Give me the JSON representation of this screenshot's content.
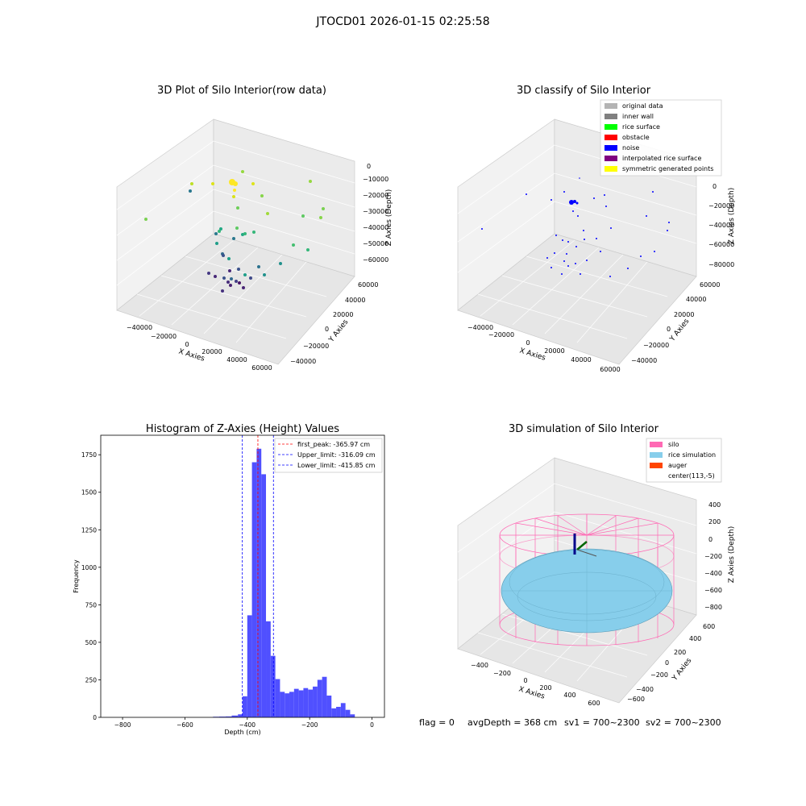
{
  "suptitle": "JTOCD01 2026-01-15 02:25:58",
  "status_line": {
    "flag": "flag = 0",
    "avg_depth": "avgDepth = 368 cm",
    "sv1": "sv1 = 700~2300",
    "sv2": "sv2 = 700~2300"
  },
  "colors": {
    "bar": "#5050ff",
    "peak_line": "#ff0000",
    "limit_line": "#0000ff",
    "silo": "#ff69b4",
    "rice": "#87ceeb",
    "auger": "#ff4500"
  },
  "chart_data": [
    {
      "type": "scatter",
      "title": "3D Plot of Silo Interior(row data)",
      "xlabel": "X Axies",
      "ylabel": "Y Axies",
      "zlabel": "Z Axies (Depth)",
      "x_ticks": [
        "−40000",
        "−20000",
        "0",
        "20000",
        "40000",
        "60000"
      ],
      "y_ticks": [
        "−40000",
        "−20000",
        "0",
        "20000",
        "40000",
        "60000"
      ],
      "z_ticks": [
        "0",
        "−10000",
        "−20000",
        "−30000",
        "−40000",
        "−50000",
        "−60000"
      ],
      "grid": true,
      "colormap": "viridis"
    },
    {
      "type": "scatter",
      "title": "3D classify of Silo Interior",
      "xlabel": "X Axies",
      "ylabel": "Y Axies",
      "zlabel": "Z Axies (Depth)",
      "x_ticks": [
        "−40000",
        "−20000",
        "0",
        "20000",
        "40000",
        "60000"
      ],
      "y_ticks": [
        "−40000",
        "−20000",
        "0",
        "20000",
        "40000",
        "60000"
      ],
      "z_ticks": [
        "0",
        "−20000",
        "−40000",
        "−60000",
        "−80000"
      ],
      "grid": true,
      "legend_position": "top-right",
      "legend": [
        {
          "label": "original data",
          "color": "#b4b4b4"
        },
        {
          "label": "inner wall",
          "color": "#808080"
        },
        {
          "label": "rice surface",
          "color": "#00ff00"
        },
        {
          "label": "obstacle",
          "color": "#ff0000"
        },
        {
          "label": "noise",
          "color": "#0000ff"
        },
        {
          "label": "interpolated rice surface",
          "color": "#800080"
        },
        {
          "label": "symmetric generated points",
          "color": "#ffff00"
        }
      ]
    },
    {
      "type": "bar",
      "title": "Histogram of Z-Axies (Height) Values",
      "xlabel": "Depth (cm)",
      "ylabel": "Frequency",
      "xlim": [
        -870,
        40
      ],
      "ylim": [
        0,
        1880
      ],
      "x_ticks": [
        -800,
        -600,
        -400,
        -200,
        0
      ],
      "y_ticks": [
        0,
        250,
        500,
        750,
        1000,
        1250,
        1500,
        1750
      ],
      "x_tick_labels": [
        "−800",
        "−600",
        "−400",
        "−200",
        "0"
      ],
      "bins": [
        {
          "x0": -510,
          "x1": -490,
          "value": 4
        },
        {
          "x0": -490,
          "x1": -470,
          "value": 5
        },
        {
          "x0": -470,
          "x1": -450,
          "value": 6
        },
        {
          "x0": -450,
          "x1": -430,
          "value": 12
        },
        {
          "x0": -430,
          "x1": -415,
          "value": 20
        },
        {
          "x0": -415,
          "x1": -400,
          "value": 140
        },
        {
          "x0": -400,
          "x1": -385,
          "value": 680
        },
        {
          "x0": -385,
          "x1": -370,
          "value": 1700
        },
        {
          "x0": -370,
          "x1": -355,
          "value": 1790
        },
        {
          "x0": -355,
          "x1": -340,
          "value": 1620
        },
        {
          "x0": -340,
          "x1": -325,
          "value": 640
        },
        {
          "x0": -325,
          "x1": -310,
          "value": 410
        },
        {
          "x0": -310,
          "x1": -295,
          "value": 255
        },
        {
          "x0": -295,
          "x1": -280,
          "value": 170
        },
        {
          "x0": -280,
          "x1": -265,
          "value": 160
        },
        {
          "x0": -265,
          "x1": -250,
          "value": 170
        },
        {
          "x0": -250,
          "x1": -235,
          "value": 190
        },
        {
          "x0": -235,
          "x1": -220,
          "value": 180
        },
        {
          "x0": -220,
          "x1": -205,
          "value": 195
        },
        {
          "x0": -205,
          "x1": -190,
          "value": 185
        },
        {
          "x0": -190,
          "x1": -175,
          "value": 205
        },
        {
          "x0": -175,
          "x1": -160,
          "value": 250
        },
        {
          "x0": -160,
          "x1": -145,
          "value": 270
        },
        {
          "x0": -145,
          "x1": -130,
          "value": 145
        },
        {
          "x0": -130,
          "x1": -115,
          "value": 60
        },
        {
          "x0": -115,
          "x1": -100,
          "value": 70
        },
        {
          "x0": -100,
          "x1": -85,
          "value": 95
        },
        {
          "x0": -85,
          "x1": -70,
          "value": 50
        },
        {
          "x0": -70,
          "x1": -55,
          "value": 20
        }
      ],
      "lines": [
        {
          "label": "first_peak: -365.97 cm",
          "x": -365.97,
          "color": "#ff0000"
        },
        {
          "label": "Upper_limit: -316.09 cm",
          "x": -316.09,
          "color": "#0000ff"
        },
        {
          "label": "Lower_limit: -415.85 cm",
          "x": -415.85,
          "color": "#0000ff"
        }
      ],
      "legend_position": "top-right"
    },
    {
      "type": "surface",
      "title": "3D simulation of Silo Interior",
      "xlabel": "X Axies",
      "ylabel": "Y Axies",
      "zlabel": "Z Axies (Depth)",
      "x_ticks": [
        "−400",
        "−200",
        "0",
        "200",
        "400",
        "600"
      ],
      "y_ticks": [
        "−600",
        "−400",
        "−200",
        "0",
        "200",
        "400",
        "600"
      ],
      "z_ticks": [
        "400",
        "200",
        "0",
        "−200",
        "−400",
        "−600",
        "−800"
      ],
      "grid": true,
      "legend_position": "top-right",
      "legend": [
        {
          "label": "silo",
          "color": "#ff69b4"
        },
        {
          "label": "rice simulation",
          "color": "#87ceeb"
        },
        {
          "label": "auger",
          "color": "#ff4500"
        },
        {
          "label": "center(113,-5)",
          "color": ""
        }
      ]
    }
  ]
}
